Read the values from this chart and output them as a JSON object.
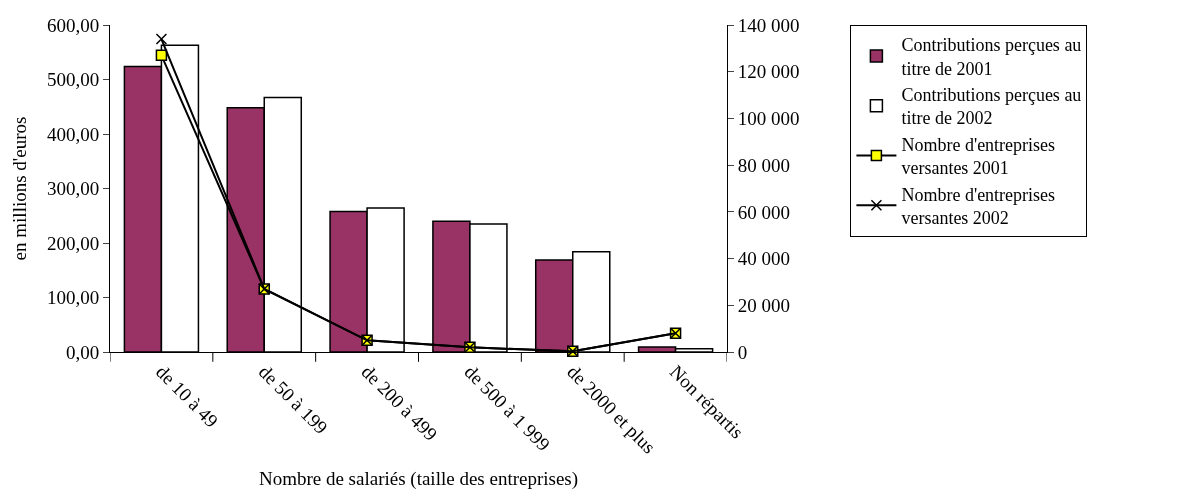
{
  "chart_data": {
    "type": "bar",
    "xlabel": "Nombre de salariés (taille des entreprises)",
    "ylabel": "en millions d'euros",
    "categories": [
      "de 10 à 49",
      "de 50 à 199",
      "de 200 à 499",
      "de 500 à 1 999",
      "de 2000 et plus",
      "Non répartis"
    ],
    "series": [
      {
        "name": "Contributions perçues au titre de 2001",
        "color": "#993366",
        "values": [
          524,
          448,
          258,
          240,
          169,
          9
        ]
      },
      {
        "name": "Contributions perçues au titre de 2002",
        "color": "#ffffff",
        "values": [
          563,
          467,
          264,
          235,
          184,
          6
        ]
      },
      {
        "name": "Nombre d'entreprises versantes 2001",
        "type": "line",
        "axis": "y2",
        "color": "#000000",
        "marker": "square",
        "values": [
          127000,
          27000,
          5000,
          2000,
          300,
          8000
        ]
      },
      {
        "name": "Nombre d'entreprises versantes 2002",
        "type": "line",
        "axis": "y2",
        "color": "#000000",
        "marker": "cross",
        "values": [
          134000,
          27000,
          5000,
          2000,
          300,
          8000
        ]
      }
    ],
    "ylim": [
      0,
      600
    ],
    "yticks": [
      {
        "value": 0,
        "label": "0,00"
      },
      {
        "value": 100,
        "label": "100,00"
      },
      {
        "value": 200,
        "label": "200,00"
      },
      {
        "value": 300,
        "label": "300,00"
      },
      {
        "value": 400,
        "label": "400,00"
      },
      {
        "value": 500,
        "label": "500,00"
      },
      {
        "value": 600,
        "label": "600,00"
      }
    ],
    "y2lim": [
      0,
      140000
    ],
    "y2ticks": [
      0,
      {
        "value": 20000,
        "label": "20 000"
      },
      {
        "value": 40000,
        "label": "40 000"
      },
      {
        "value": 60000,
        "label": "60 000"
      },
      {
        "value": 80000,
        "label": "80 000"
      },
      {
        "value": 100000,
        "label": "100 000"
      },
      {
        "value": 120000,
        "label": "120 000"
      },
      {
        "value": 140000,
        "label": "140 000"
      }
    ],
    "legend": "right"
  }
}
